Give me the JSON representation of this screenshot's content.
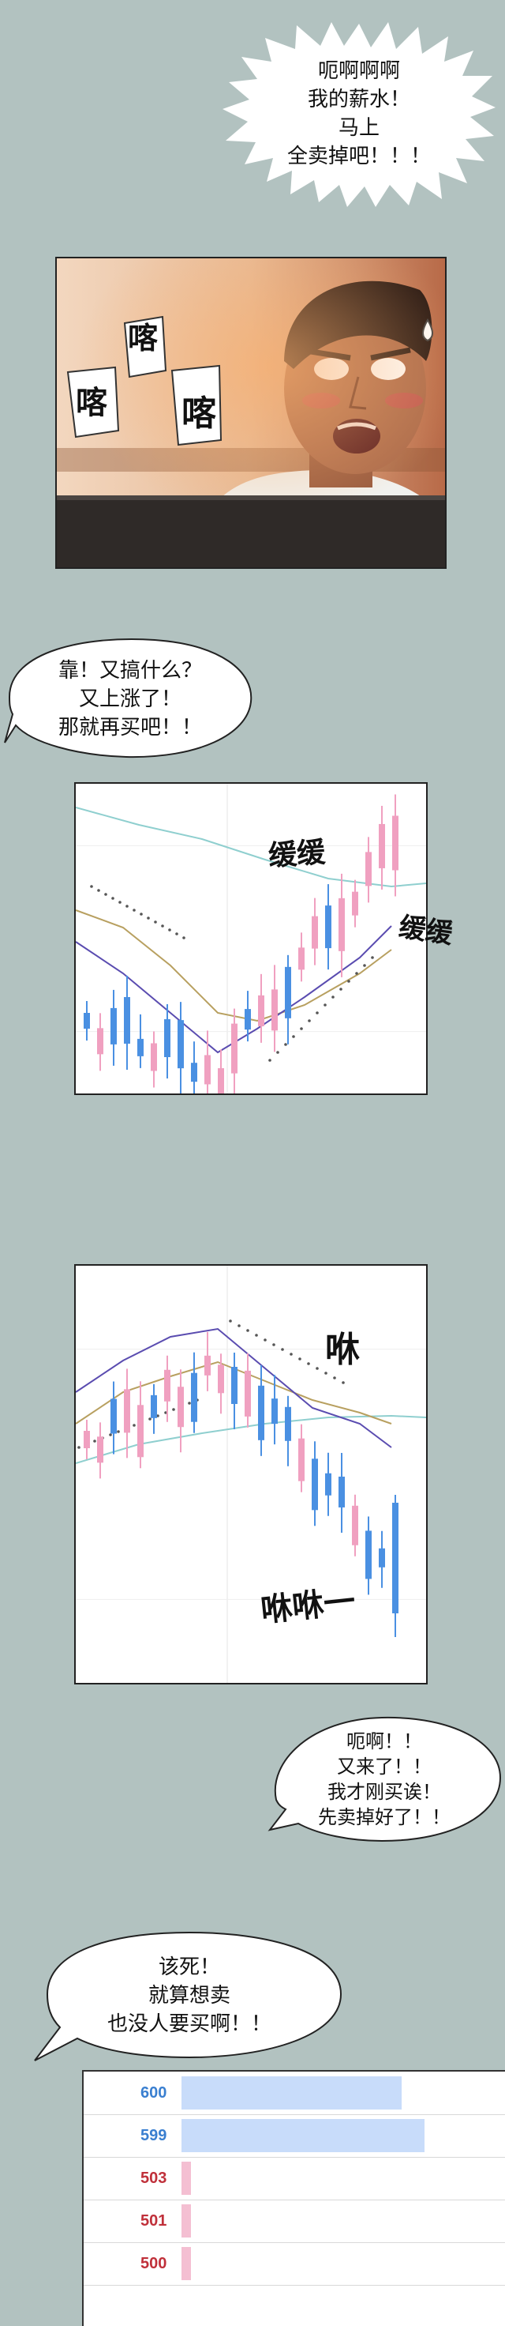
{
  "bubbles": {
    "b1": [
      "呃啊啊啊",
      "我的薪水！",
      "马上",
      "全卖掉吧！！！"
    ],
    "b2": [
      "靠！又搞什么？",
      "又上涨了！",
      "那就再买吧！！"
    ],
    "b3": [
      "呃啊！！",
      "又来了！！",
      "我才刚买诶！",
      "先卖掉好了！！"
    ],
    "b4": [
      "该死！",
      "就算想卖",
      "也没人要买啊！！"
    ]
  },
  "sfx": {
    "tap": "喀",
    "slow": "缓缓",
    "swoosh1": "咻",
    "swoosh2": "咻咻一"
  },
  "orderbook": {
    "rows": [
      {
        "price": "600",
        "side": "ask",
        "level": 0.68
      },
      {
        "price": "599",
        "side": "ask",
        "level": 0.75
      },
      {
        "price": "503",
        "side": "bid",
        "level": 0.03
      },
      {
        "price": "501",
        "side": "bid",
        "level": 0.03
      },
      {
        "price": "500",
        "side": "bid",
        "level": 0.03
      }
    ]
  },
  "colors": {
    "background": "#b2c2c0",
    "up_candle": "#f0a0c0",
    "down_candle": "#4a90e2",
    "ask_price": "#3a7fd0",
    "bid_price": "#c0303a",
    "ask_bar": "#c8dcfa",
    "bid_bar": "#f4bfd2"
  },
  "chart_data": [
    {
      "type": "candlestick",
      "trend": "rising",
      "series": [
        {
          "kind": "candles",
          "up_color": "#f0a0c0",
          "down_color": "#4a90e2"
        },
        {
          "kind": "ma_line",
          "color": "#8fcfcf"
        },
        {
          "kind": "ma_line",
          "color": "#b8a060"
        },
        {
          "kind": "ma_line",
          "color": "#5a4cb0"
        },
        {
          "kind": "dotted_band",
          "color": "#555555"
        }
      ]
    },
    {
      "type": "candlestick",
      "trend": "falling",
      "series": [
        {
          "kind": "candles",
          "up_color": "#f0a0c0",
          "down_color": "#4a90e2"
        },
        {
          "kind": "ma_line",
          "color": "#8fcfcf"
        },
        {
          "kind": "ma_line",
          "color": "#b8a060"
        },
        {
          "kind": "ma_line",
          "color": "#5a4cb0"
        },
        {
          "kind": "dotted_band",
          "color": "#555555"
        }
      ]
    }
  ]
}
